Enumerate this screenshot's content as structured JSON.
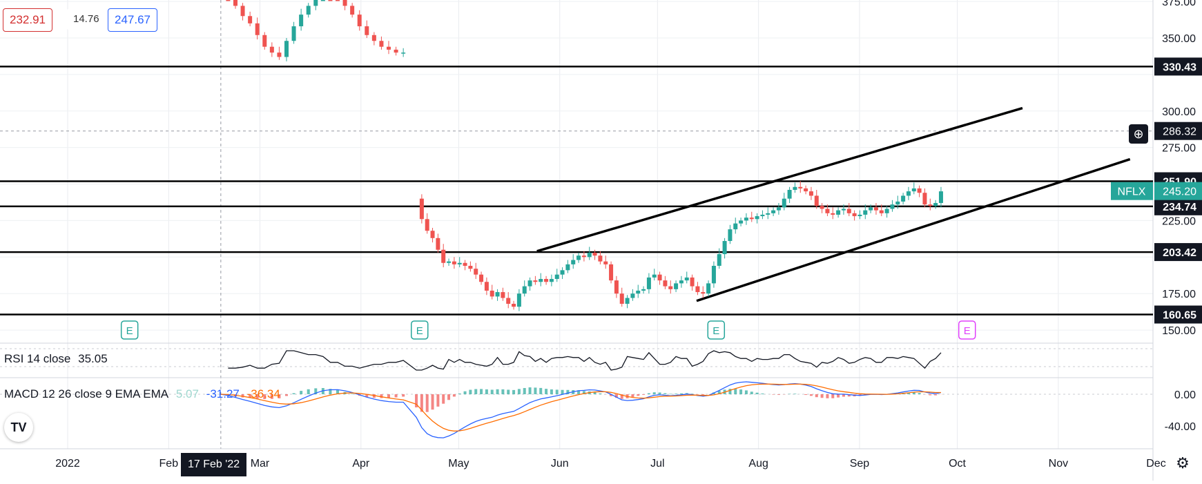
{
  "hud": {
    "bid": "232.91",
    "spread": "14.76",
    "ask": "247.67"
  },
  "symbol": "NFLX",
  "last_price_label": "245.20",
  "crosshair_price": "286.32",
  "cursor_date": "17 Feb '22",
  "rsi": {
    "label": "RSI 14 close",
    "value": "35.05"
  },
  "macd": {
    "label": "MACD 12 26 close 9 EMA EMA",
    "hist": "5.07",
    "macd": "-31.27",
    "signal": "-36.34"
  },
  "colors": {
    "up": "#26a69a",
    "down": "#ef5350",
    "line": "#000000",
    "macd_line": "#2962ff",
    "signal_line": "#ff6d00",
    "earnings": "#26a69a",
    "earnings_future": "#e040fb"
  },
  "icons": {
    "logo": "tradingview-logo-icon",
    "settings": "gear-icon",
    "crosshair": "plus-circle-icon"
  },
  "chart_data": {
    "type": "candlestick",
    "symbol": "NFLX",
    "y_axis": {
      "ticks": [
        375,
        350,
        325,
        300,
        275,
        250,
        225,
        200,
        175,
        150
      ],
      "visible_labels": [
        "375.00",
        "350.00",
        "300.00",
        "275.00",
        "225.00",
        "175.00",
        "150.00"
      ],
      "ylim": [
        142,
        376
      ]
    },
    "x_axis": {
      "labels": [
        "2022",
        "Feb",
        "Mar",
        "Apr",
        "May",
        "Jun",
        "Jul",
        "Aug",
        "Sep",
        "Oct",
        "Nov",
        "Dec"
      ]
    },
    "horizontal_levels": [
      330.43,
      251.9,
      234.74,
      203.42,
      160.65
    ],
    "trendlines": [
      {
        "from": [
          "2022-05-25",
          204
        ],
        "to": [
          "2022-10-21",
          302
        ]
      },
      {
        "from": [
          "2022-07-13",
          170
        ],
        "to": [
          "2022-11-23",
          267
        ]
      }
    ],
    "earnings_markers": [
      "2022-01-20",
      "2022-04-19",
      "2022-07-19",
      "2022-10-04"
    ],
    "ohlc_segments": [
      {
        "range": [
          "2022-02-17",
          "2022-04-14"
        ],
        "approx_close_path": [
          388,
          380,
          372,
          365,
          360,
          352,
          344,
          340,
          337,
          348,
          358,
          366,
          372,
          378,
          382,
          380,
          378,
          372,
          366,
          358,
          352,
          348,
          344,
          342,
          340,
          340
        ]
      },
      {
        "range": [
          "2022-04-18",
          "2022-09-26"
        ],
        "approx_close_path": [
          240,
          226,
          218,
          213,
          205,
          196,
          197,
          195,
          196,
          194,
          192,
          188,
          183,
          177,
          173,
          176,
          172,
          168,
          166,
          175,
          180,
          184,
          183,
          185,
          183,
          185,
          188,
          191,
          195,
          198,
          201,
          200,
          203,
          201,
          197,
          195,
          184,
          175,
          168,
          172,
          175,
          177,
          178,
          186,
          188,
          184,
          180,
          178,
          182,
          184,
          186,
          180,
          176,
          175,
          182,
          194,
          202,
          211,
          219,
          223,
          225,
          227,
          226,
          228,
          229,
          230,
          232,
          234,
          240,
          246,
          248,
          247,
          245,
          242,
          235,
          233,
          230,
          229,
          232,
          233,
          230,
          228,
          229,
          232,
          234,
          232,
          230,
          233,
          236,
          238,
          242,
          245,
          247,
          244,
          236,
          235,
          237,
          245
        ]
      }
    ],
    "last": 245.2,
    "rsi": {
      "name": "RSI 14 close",
      "last": 35.05
    },
    "macd": {
      "name": "MACD 12 26 close 9 EMA EMA",
      "axis_labels": [
        "0.00",
        "-40.00"
      ],
      "last_hist": 5.07,
      "last_macd": -31.27,
      "last_signal": -36.34
    }
  }
}
